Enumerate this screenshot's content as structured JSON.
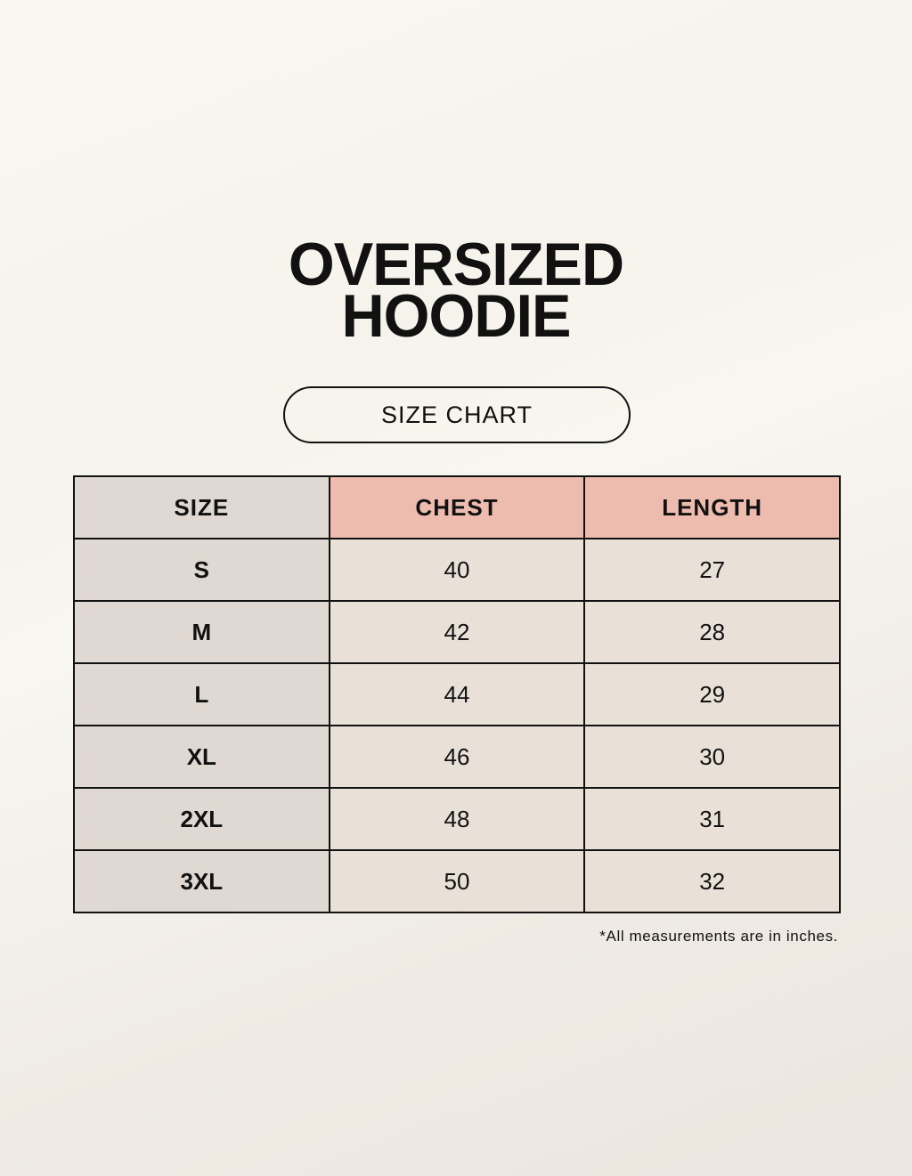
{
  "title": {
    "line1": "OVERSIZED",
    "line2": "HOODIE"
  },
  "subtitle": "SIZE CHART",
  "table": {
    "headers": [
      "SIZE",
      "CHEST",
      "LENGTH"
    ],
    "rows": [
      [
        "S",
        "40",
        "27"
      ],
      [
        "M",
        "42",
        "28"
      ],
      [
        "L",
        "44",
        "29"
      ],
      [
        "XL",
        "46",
        "30"
      ],
      [
        "2XL",
        "48",
        "31"
      ],
      [
        "3XL",
        "50",
        "32"
      ]
    ]
  },
  "footnote": "*All measurements are in inches.",
  "colors": {
    "size_column": "#e0d8d3",
    "header_accent": "#eebcaf",
    "cell": "#e9e1d7"
  }
}
